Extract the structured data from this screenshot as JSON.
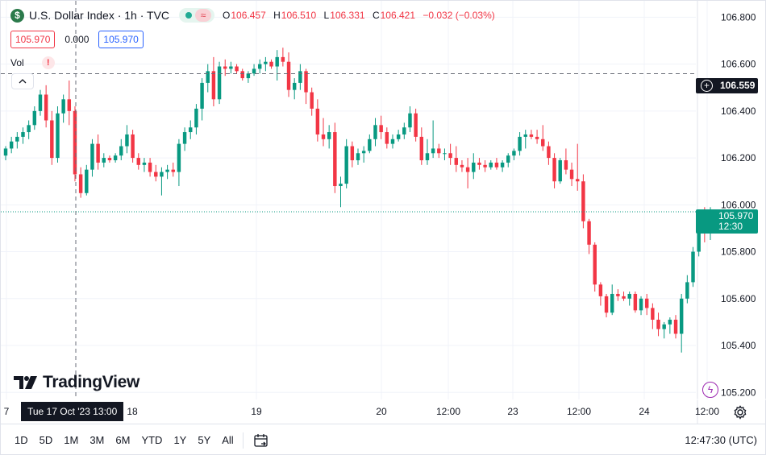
{
  "header": {
    "logo_letter": "$",
    "title": "U.S. Dollar Index · 1h · TVC",
    "wave_glyph": "≈",
    "ohlc": [
      {
        "key": "O",
        "value": "106.457"
      },
      {
        "key": "H",
        "value": "106.510"
      },
      {
        "key": "L",
        "value": "106.331"
      },
      {
        "key": "C",
        "value": "106.421"
      }
    ],
    "change": "−0.032 (−0.03%)"
  },
  "trade_row": {
    "sell": "105.970",
    "spread": "0.000",
    "buy": "105.970"
  },
  "volume_label": "Vol",
  "volume_warning": "!",
  "collapse_glyph": "^",
  "price_labels": {
    "crosshair_price": "106.559",
    "last_price": "105.970",
    "countdown": "12:30"
  },
  "crosshair_time": "Tue 17 Oct '23   13:00",
  "brand": "TradingView",
  "ranges": [
    "1D",
    "5D",
    "1M",
    "3M",
    "6M",
    "YTD",
    "1Y",
    "5Y",
    "All"
  ],
  "clock": "12:47:30 (UTC)",
  "colors": {
    "up": "#089981",
    "down": "#f23645",
    "grid": "#f0f3fa",
    "text": "#131722"
  },
  "chart_data": {
    "type": "candlestick",
    "symbol": "U.S. Dollar Index",
    "interval": "1h",
    "exchange": "TVC",
    "ylim": [
      105.17,
      106.87
    ],
    "y_ticks": [
      106.8,
      106.6,
      106.4,
      106.2,
      106.0,
      105.8,
      105.6,
      105.4,
      105.2
    ],
    "x_ticks": [
      "7",
      "18",
      "19",
      "20",
      "12:00",
      "23",
      "12:00",
      "24",
      "12:00"
    ],
    "crosshair": {
      "price": 106.559,
      "time": "Tue 17 Oct '23 13:00"
    },
    "last_price": 105.97,
    "candles": [
      [
        106.21,
        106.25,
        106.19,
        106.24
      ],
      [
        106.24,
        106.29,
        106.22,
        106.27
      ],
      [
        106.27,
        106.31,
        106.24,
        106.29
      ],
      [
        106.29,
        106.33,
        106.26,
        106.31
      ],
      [
        106.31,
        106.36,
        106.28,
        106.34
      ],
      [
        106.34,
        106.42,
        106.32,
        106.4
      ],
      [
        106.4,
        106.49,
        106.38,
        106.47
      ],
      [
        106.47,
        106.51,
        106.33,
        106.36
      ],
      [
        106.36,
        106.4,
        106.17,
        106.2
      ],
      [
        106.2,
        106.42,
        106.18,
        106.39
      ],
      [
        106.39,
        106.47,
        106.35,
        106.45
      ],
      [
        106.45,
        106.53,
        106.34,
        106.4
      ],
      [
        106.4,
        106.42,
        106.1,
        106.13
      ],
      [
        106.13,
        106.16,
        106.03,
        106.05
      ],
      [
        106.05,
        106.17,
        106.04,
        106.15
      ],
      [
        106.15,
        106.28,
        106.12,
        106.26
      ],
      [
        106.26,
        106.3,
        106.15,
        106.18
      ],
      [
        106.18,
        106.22,
        106.16,
        106.2
      ],
      [
        106.2,
        106.21,
        106.18,
        106.19
      ],
      [
        106.19,
        106.22,
        106.18,
        106.21
      ],
      [
        106.21,
        106.28,
        106.19,
        106.25
      ],
      [
        106.25,
        106.34,
        106.22,
        106.3
      ],
      [
        106.3,
        106.32,
        106.18,
        106.2
      ],
      [
        106.2,
        106.22,
        106.15,
        106.17
      ],
      [
        106.17,
        106.2,
        106.14,
        106.18
      ],
      [
        106.18,
        106.2,
        106.12,
        106.14
      ],
      [
        106.14,
        106.17,
        106.1,
        106.12
      ],
      [
        106.12,
        106.16,
        106.04,
        106.14
      ],
      [
        106.14,
        106.17,
        106.11,
        106.15
      ],
      [
        106.15,
        106.18,
        106.12,
        106.14
      ],
      [
        106.14,
        106.28,
        106.08,
        106.26
      ],
      [
        106.26,
        106.33,
        106.23,
        106.31
      ],
      [
        106.31,
        106.36,
        106.28,
        106.33
      ],
      [
        106.33,
        106.43,
        106.3,
        106.41
      ],
      [
        106.41,
        106.54,
        106.36,
        106.52
      ],
      [
        106.52,
        106.6,
        106.48,
        106.57
      ],
      [
        106.57,
        106.63,
        106.42,
        106.45
      ],
      [
        106.45,
        106.61,
        106.43,
        106.59
      ],
      [
        106.59,
        106.62,
        106.55,
        106.58
      ],
      [
        106.58,
        106.61,
        106.56,
        106.59
      ],
      [
        106.59,
        106.6,
        106.56,
        106.57
      ],
      [
        106.57,
        106.58,
        106.53,
        106.54
      ],
      [
        106.54,
        106.57,
        106.52,
        106.56
      ],
      [
        106.56,
        106.6,
        106.55,
        106.58
      ],
      [
        106.58,
        106.62,
        106.56,
        106.6
      ],
      [
        106.6,
        106.63,
        106.57,
        106.61
      ],
      [
        106.61,
        106.62,
        106.58,
        106.59
      ],
      [
        106.59,
        106.66,
        106.53,
        106.63
      ],
      [
        106.63,
        106.67,
        106.59,
        106.61
      ],
      [
        106.61,
        106.65,
        106.46,
        106.49
      ],
      [
        106.49,
        106.54,
        106.45,
        106.52
      ],
      [
        106.52,
        106.6,
        106.49,
        106.57
      ],
      [
        106.57,
        106.58,
        106.43,
        106.48
      ],
      [
        106.48,
        106.5,
        106.38,
        106.41
      ],
      [
        106.41,
        106.45,
        106.27,
        106.3
      ],
      [
        106.3,
        106.37,
        106.25,
        106.28
      ],
      [
        106.28,
        106.34,
        106.24,
        106.31
      ],
      [
        106.31,
        106.35,
        106.05,
        106.08
      ],
      [
        106.08,
        106.12,
        105.99,
        106.09
      ],
      [
        106.09,
        106.28,
        106.07,
        106.25
      ],
      [
        106.25,
        106.27,
        106.16,
        106.19
      ],
      [
        106.19,
        106.24,
        106.17,
        106.22
      ],
      [
        106.22,
        106.25,
        106.18,
        106.23
      ],
      [
        106.23,
        106.3,
        106.22,
        106.28
      ],
      [
        106.28,
        106.37,
        106.25,
        106.34
      ],
      [
        106.34,
        106.38,
        106.28,
        106.31
      ],
      [
        106.31,
        106.33,
        106.24,
        106.26
      ],
      [
        106.26,
        106.3,
        106.24,
        106.28
      ],
      [
        106.28,
        106.32,
        106.27,
        106.3
      ],
      [
        106.3,
        106.35,
        106.28,
        106.33
      ],
      [
        106.33,
        106.42,
        106.31,
        106.39
      ],
      [
        106.39,
        106.41,
        106.27,
        106.29
      ],
      [
        106.29,
        106.33,
        106.17,
        106.19
      ],
      [
        106.19,
        106.28,
        106.17,
        106.22
      ],
      [
        106.22,
        106.36,
        106.2,
        106.24
      ],
      [
        106.24,
        106.26,
        106.2,
        106.22
      ],
      [
        106.22,
        106.24,
        106.19,
        106.22
      ],
      [
        106.22,
        106.26,
        106.17,
        106.2
      ],
      [
        106.2,
        106.25,
        106.14,
        106.17
      ],
      [
        106.17,
        106.19,
        106.14,
        106.16
      ],
      [
        106.16,
        106.2,
        106.07,
        106.14
      ],
      [
        106.14,
        106.22,
        106.11,
        106.18
      ],
      [
        106.18,
        106.2,
        106.15,
        106.17
      ],
      [
        106.17,
        106.19,
        106.14,
        106.16
      ],
      [
        106.16,
        106.19,
        106.15,
        106.18
      ],
      [
        106.18,
        106.2,
        106.15,
        106.16
      ],
      [
        106.16,
        106.19,
        106.14,
        106.18
      ],
      [
        106.18,
        106.22,
        106.16,
        106.21
      ],
      [
        106.21,
        106.24,
        106.19,
        106.23
      ],
      [
        106.23,
        106.31,
        106.21,
        106.29
      ],
      [
        106.29,
        106.32,
        106.24,
        106.3
      ],
      [
        106.3,
        106.32,
        106.28,
        106.29
      ],
      [
        106.29,
        106.32,
        106.26,
        106.28
      ],
      [
        106.28,
        106.34,
        106.23,
        106.25
      ],
      [
        106.25,
        106.27,
        106.17,
        106.2
      ],
      [
        106.2,
        106.22,
        106.07,
        106.1
      ],
      [
        106.1,
        106.2,
        106.09,
        106.19
      ],
      [
        106.19,
        106.24,
        106.13,
        106.15
      ],
      [
        106.15,
        106.18,
        106.08,
        106.11
      ],
      [
        106.11,
        106.26,
        106.06,
        106.1
      ],
      [
        106.1,
        106.13,
        105.9,
        105.93
      ],
      [
        105.93,
        105.94,
        105.79,
        105.83
      ],
      [
        105.83,
        105.84,
        105.63,
        105.66
      ],
      [
        105.66,
        105.67,
        105.57,
        105.61
      ],
      [
        105.61,
        105.62,
        105.52,
        105.54
      ],
      [
        105.54,
        105.66,
        105.53,
        105.62
      ],
      [
        105.62,
        105.64,
        105.59,
        105.61
      ],
      [
        105.61,
        105.63,
        105.59,
        105.6
      ],
      [
        105.6,
        105.63,
        105.57,
        105.62
      ],
      [
        105.62,
        105.63,
        105.54,
        105.55
      ],
      [
        105.55,
        105.61,
        105.53,
        105.6
      ],
      [
        105.6,
        105.62,
        105.53,
        105.56
      ],
      [
        105.56,
        105.58,
        105.47,
        105.51
      ],
      [
        105.51,
        105.54,
        105.44,
        105.47
      ],
      [
        105.47,
        105.5,
        105.43,
        105.49
      ],
      [
        105.49,
        105.52,
        105.45,
        105.51
      ],
      [
        105.51,
        105.53,
        105.43,
        105.45
      ],
      [
        105.45,
        105.62,
        105.37,
        105.6
      ],
      [
        105.6,
        105.7,
        105.58,
        105.67
      ],
      [
        105.67,
        105.82,
        105.65,
        105.8
      ],
      [
        105.8,
        105.94,
        105.78,
        105.93
      ],
      [
        105.93,
        105.99,
        105.84,
        105.88
      ],
      [
        105.88,
        105.99,
        105.85,
        105.97
      ]
    ]
  }
}
